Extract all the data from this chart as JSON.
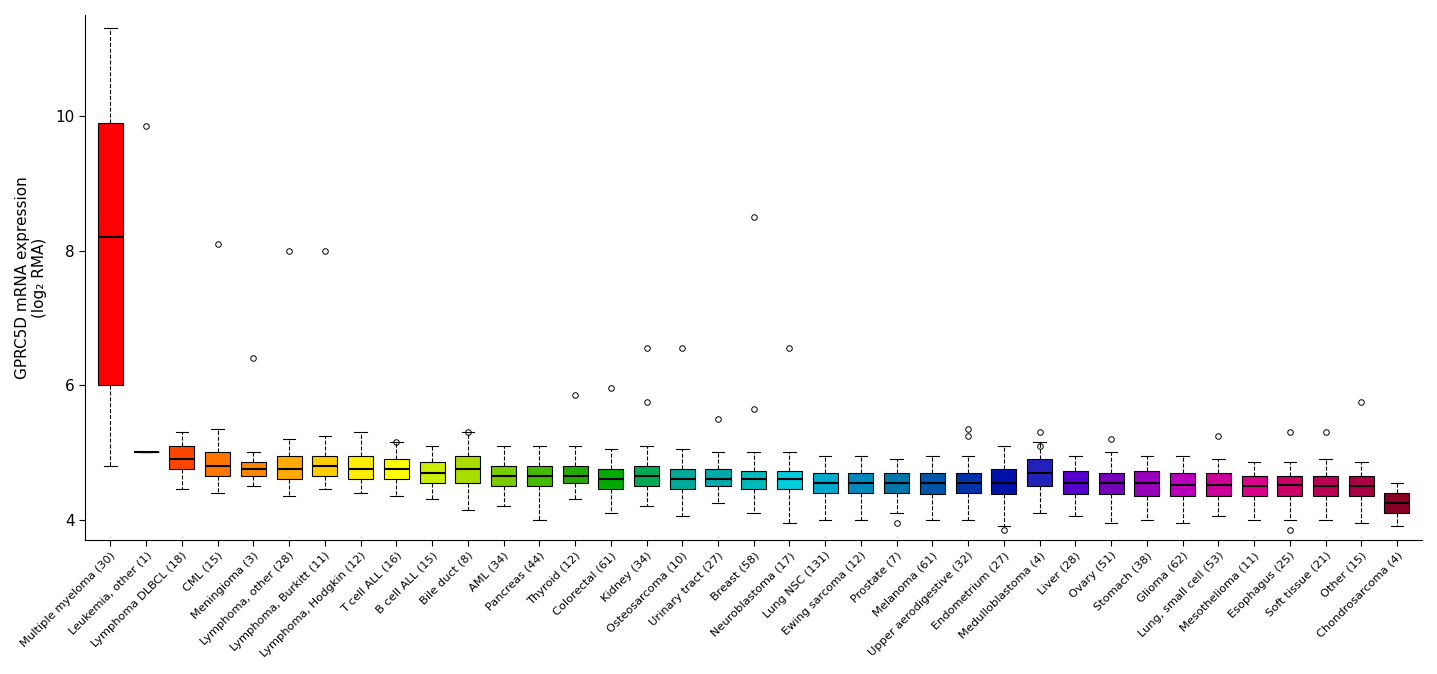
{
  "ylabel": "GPRC5D mRNA expression\n(log₂ RMA)",
  "ylim": [
    3.7,
    11.5
  ],
  "yticks": [
    4,
    6,
    8,
    10
  ],
  "categories": [
    "Multiple myeloma (30)",
    "Leukemia, other (1)",
    "Lymphoma DLBCL (18)",
    "CML (15)",
    "Meningioma (3)",
    "Lymphoma, other (28)",
    "Lymphoma, Burkitt (11)",
    "Lymphoma, Hodgkin (12)",
    "T cell ALL (16)",
    "B cell ALL (15)",
    "Bile duct (8)",
    "AML (34)",
    "Pancreas (44)",
    "Thyroid (12)",
    "Colorectal (61)",
    "Kidney (34)",
    "Osteosarcoma (10)",
    "Urinary tract (27)",
    "Breast (58)",
    "Neuroblastoma (17)",
    "Lung NSC (131)",
    "Ewing sarcoma (12)",
    "Prostate (7)",
    "Melanoma (61)",
    "Upper aerodigestive (32)",
    "Endometrium (27)",
    "Medulloblastoma (4)",
    "Liver (28)",
    "Ovary (51)",
    "Stomach (38)",
    "Glioma (62)",
    "Lung, small cell (53)",
    "Mesothelioma (11)",
    "Esophagus (25)",
    "Soft tissue (21)",
    "Other (15)",
    "Chondrosarcoma (4)"
  ],
  "colors": [
    "#FF0000",
    "#FF0000",
    "#FF4400",
    "#FF7700",
    "#FF8800",
    "#FFAA00",
    "#FFCC00",
    "#FFEE00",
    "#FFFF00",
    "#CCEE00",
    "#AADD00",
    "#77CC00",
    "#44BB00",
    "#22AA00",
    "#00AA00",
    "#00AA55",
    "#00AA99",
    "#00AAAA",
    "#00BBBB",
    "#00CCDD",
    "#00AACC",
    "#0088BB",
    "#0077AA",
    "#0055AA",
    "#0033AA",
    "#0011AA",
    "#2222BB",
    "#5500CC",
    "#7700BB",
    "#9900BB",
    "#BB00BB",
    "#CC0099",
    "#DD0088",
    "#CC0066",
    "#BB0055",
    "#AA0044",
    "#880022"
  ],
  "box_stats": [
    {
      "med": 8.2,
      "q1": 6.0,
      "q3": 9.9,
      "whislo": 4.8,
      "whishi": 11.3,
      "fliers": []
    },
    {
      "med": 5.0,
      "q1": 5.0,
      "q3": 5.0,
      "whislo": 5.0,
      "whishi": 5.0,
      "fliers": [
        9.85
      ]
    },
    {
      "med": 4.9,
      "q1": 4.75,
      "q3": 5.1,
      "whislo": 4.45,
      "whishi": 5.3,
      "fliers": []
    },
    {
      "med": 4.8,
      "q1": 4.65,
      "q3": 5.0,
      "whislo": 4.4,
      "whishi": 5.35,
      "fliers": [
        8.1
      ]
    },
    {
      "med": 4.75,
      "q1": 4.65,
      "q3": 4.85,
      "whislo": 4.5,
      "whishi": 5.0,
      "fliers": [
        6.4
      ]
    },
    {
      "med": 4.75,
      "q1": 4.6,
      "q3": 4.95,
      "whislo": 4.35,
      "whishi": 5.2,
      "fliers": [
        8.0
      ]
    },
    {
      "med": 4.8,
      "q1": 4.65,
      "q3": 4.95,
      "whislo": 4.45,
      "whishi": 5.25,
      "fliers": [
        8.0
      ]
    },
    {
      "med": 4.75,
      "q1": 4.6,
      "q3": 4.95,
      "whislo": 4.4,
      "whishi": 5.3,
      "fliers": []
    },
    {
      "med": 4.75,
      "q1": 4.6,
      "q3": 4.9,
      "whislo": 4.35,
      "whishi": 5.15,
      "fliers": [
        5.15
      ]
    },
    {
      "med": 4.7,
      "q1": 4.55,
      "q3": 4.85,
      "whislo": 4.3,
      "whishi": 5.1,
      "fliers": []
    },
    {
      "med": 4.75,
      "q1": 4.55,
      "q3": 4.95,
      "whislo": 4.15,
      "whishi": 5.3,
      "fliers": [
        5.3
      ]
    },
    {
      "med": 4.65,
      "q1": 4.5,
      "q3": 4.8,
      "whislo": 4.2,
      "whishi": 5.1,
      "fliers": []
    },
    {
      "med": 4.65,
      "q1": 4.5,
      "q3": 4.8,
      "whislo": 4.0,
      "whishi": 5.1,
      "fliers": []
    },
    {
      "med": 4.65,
      "q1": 4.55,
      "q3": 4.8,
      "whislo": 4.3,
      "whishi": 5.1,
      "fliers": [
        5.85
      ]
    },
    {
      "med": 4.6,
      "q1": 4.45,
      "q3": 4.75,
      "whislo": 4.1,
      "whishi": 5.05,
      "fliers": [
        5.95
      ]
    },
    {
      "med": 4.65,
      "q1": 4.5,
      "q3": 4.8,
      "whislo": 4.2,
      "whishi": 5.1,
      "fliers": [
        5.75,
        6.55
      ]
    },
    {
      "med": 4.6,
      "q1": 4.45,
      "q3": 4.75,
      "whislo": 4.05,
      "whishi": 5.05,
      "fliers": [
        6.55
      ]
    },
    {
      "med": 4.6,
      "q1": 4.5,
      "q3": 4.75,
      "whislo": 4.25,
      "whishi": 5.0,
      "fliers": [
        5.5
      ]
    },
    {
      "med": 4.6,
      "q1": 4.45,
      "q3": 4.72,
      "whislo": 4.1,
      "whishi": 5.0,
      "fliers": [
        5.65,
        8.5
      ]
    },
    {
      "med": 4.6,
      "q1": 4.45,
      "q3": 4.72,
      "whislo": 3.95,
      "whishi": 5.0,
      "fliers": [
        6.55
      ]
    },
    {
      "med": 4.55,
      "q1": 4.4,
      "q3": 4.7,
      "whislo": 4.0,
      "whishi": 4.95,
      "fliers": []
    },
    {
      "med": 4.55,
      "q1": 4.4,
      "q3": 4.7,
      "whislo": 4.0,
      "whishi": 4.95,
      "fliers": []
    },
    {
      "med": 4.55,
      "q1": 4.4,
      "q3": 4.7,
      "whislo": 4.1,
      "whishi": 4.9,
      "fliers": [
        3.95
      ]
    },
    {
      "med": 4.55,
      "q1": 4.38,
      "q3": 4.7,
      "whislo": 4.0,
      "whishi": 4.95,
      "fliers": []
    },
    {
      "med": 4.55,
      "q1": 4.4,
      "q3": 4.7,
      "whislo": 4.0,
      "whishi": 4.95,
      "fliers": [
        5.25,
        5.35
      ]
    },
    {
      "med": 4.55,
      "q1": 4.38,
      "q3": 4.75,
      "whislo": 3.9,
      "whishi": 5.1,
      "fliers": [
        3.85
      ]
    },
    {
      "med": 4.7,
      "q1": 4.5,
      "q3": 4.9,
      "whislo": 4.1,
      "whishi": 5.15,
      "fliers": [
        5.1,
        5.3
      ]
    },
    {
      "med": 4.55,
      "q1": 4.38,
      "q3": 4.72,
      "whislo": 4.05,
      "whishi": 4.95,
      "fliers": []
    },
    {
      "med": 4.55,
      "q1": 4.38,
      "q3": 4.7,
      "whislo": 3.95,
      "whishi": 5.0,
      "fliers": [
        5.2
      ]
    },
    {
      "med": 4.55,
      "q1": 4.35,
      "q3": 4.72,
      "whislo": 4.0,
      "whishi": 4.95,
      "fliers": []
    },
    {
      "med": 4.52,
      "q1": 4.35,
      "q3": 4.7,
      "whislo": 3.95,
      "whishi": 4.95,
      "fliers": []
    },
    {
      "med": 4.52,
      "q1": 4.35,
      "q3": 4.7,
      "whislo": 4.05,
      "whishi": 4.9,
      "fliers": [
        5.25
      ]
    },
    {
      "med": 4.5,
      "q1": 4.35,
      "q3": 4.65,
      "whislo": 4.0,
      "whishi": 4.85,
      "fliers": []
    },
    {
      "med": 4.52,
      "q1": 4.35,
      "q3": 4.65,
      "whislo": 4.0,
      "whishi": 4.85,
      "fliers": [
        3.85,
        5.3
      ]
    },
    {
      "med": 4.5,
      "q1": 4.35,
      "q3": 4.65,
      "whislo": 4.0,
      "whishi": 4.9,
      "fliers": [
        5.3
      ]
    },
    {
      "med": 4.5,
      "q1": 4.35,
      "q3": 4.65,
      "whislo": 3.95,
      "whishi": 4.85,
      "fliers": [
        5.75
      ]
    },
    {
      "med": 4.25,
      "q1": 4.1,
      "q3": 4.4,
      "whislo": 3.9,
      "whishi": 4.55,
      "fliers": []
    }
  ]
}
